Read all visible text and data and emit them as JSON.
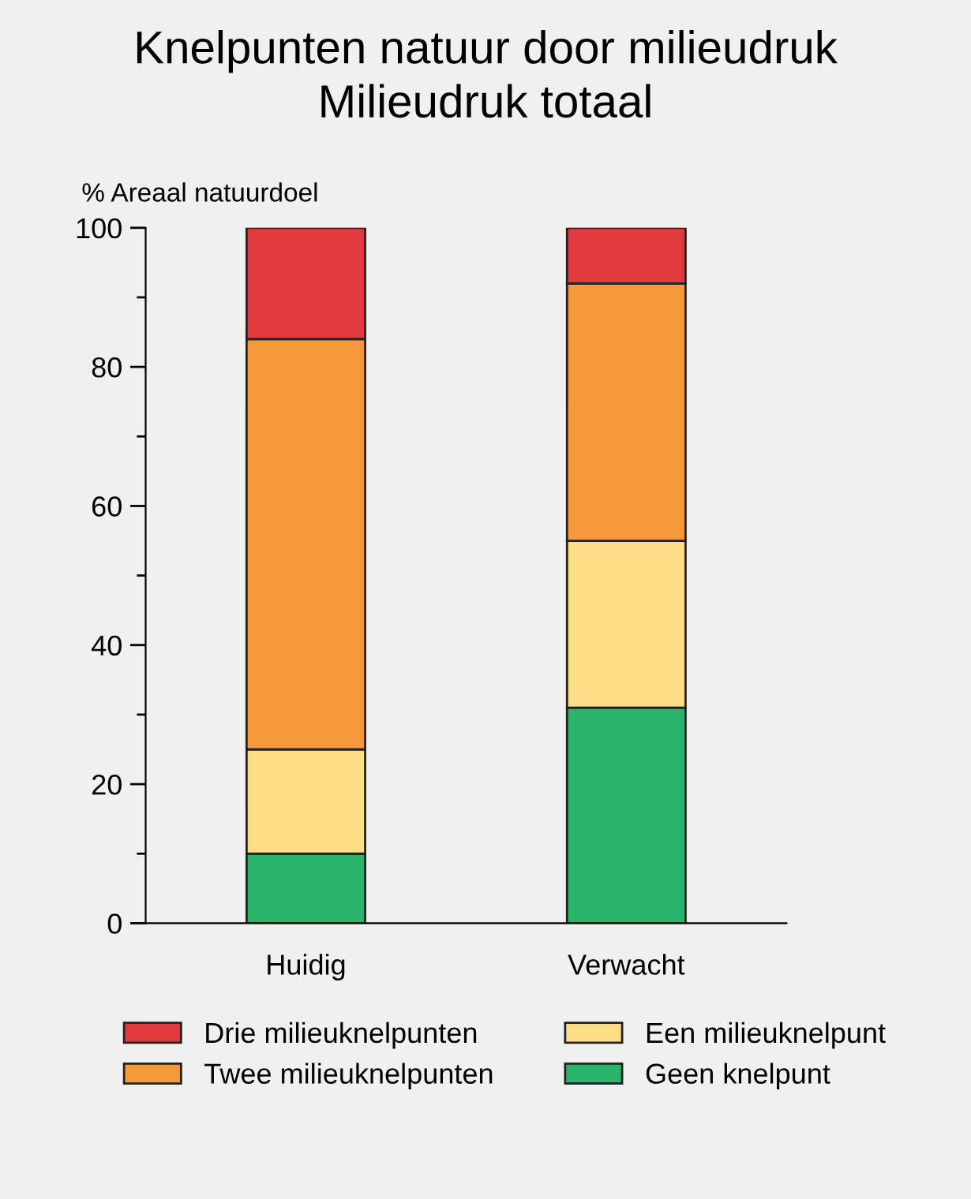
{
  "chart_data": {
    "type": "bar",
    "title": "Knelpunten natuur door milieudruk",
    "subtitle": "Milieudruk totaal",
    "ylabel": "% Areaal natuurdoel",
    "categories": [
      "Huidig",
      "Verwacht"
    ],
    "stacked": true,
    "legend": "bottom",
    "grid": false,
    "series": [
      {
        "name": "Geen knelpunt",
        "color": "#2ab36a",
        "values": [
          10,
          31
        ]
      },
      {
        "name": "Een milieuknelpunt",
        "color": "#fddc86",
        "values": [
          15,
          24
        ]
      },
      {
        "name": "Twee milieuknelpunten",
        "color": "#f7993a",
        "values": [
          59,
          37
        ]
      },
      {
        "name": "Drie milieuknelpunten",
        "color": "#e03a3e",
        "values": [
          16,
          8
        ]
      }
    ],
    "ylim": [
      0,
      100
    ],
    "yticks": [
      0,
      {
        "value": 10,
        "label": null
      },
      20,
      {
        "value": 30,
        "label": null
      },
      40,
      {
        "value": 50,
        "label": null
      },
      60,
      {
        "value": 70,
        "label": null
      },
      80,
      {
        "value": 90,
        "label": null
      },
      100
    ]
  }
}
